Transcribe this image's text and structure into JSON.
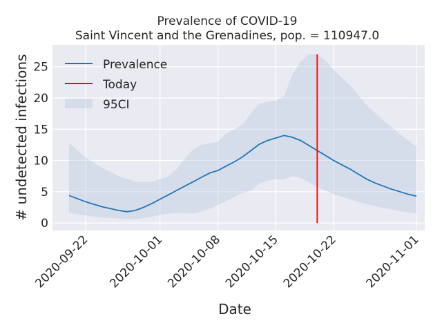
{
  "chart_data": {
    "type": "line",
    "title": "Prevalence of COVID-19",
    "subtitle": "Saint Vincent and the Grenadines, pop. = 110947.0",
    "xlabel": "Date",
    "ylabel": "# undetected infections",
    "xlim": [
      "2020-09-18",
      "2020-11-02"
    ],
    "ylim": [
      -1.2,
      28.5
    ],
    "x_ticks": [
      "2020-09-22",
      "2020-10-01",
      "2020-10-08",
      "2020-10-15",
      "2020-10-22",
      "2020-11-01"
    ],
    "y_ticks": [
      0,
      5,
      10,
      15,
      20,
      25
    ],
    "grid": true,
    "legend_position": "top-left",
    "series": [
      {
        "name": "Prevalence",
        "color": "#1f77b4",
        "x": [
          "2020-09-20",
          "2020-09-21",
          "2020-09-22",
          "2020-09-23",
          "2020-09-24",
          "2020-09-25",
          "2020-09-26",
          "2020-09-27",
          "2020-09-28",
          "2020-09-29",
          "2020-09-30",
          "2020-10-01",
          "2020-10-02",
          "2020-10-03",
          "2020-10-04",
          "2020-10-05",
          "2020-10-06",
          "2020-10-07",
          "2020-10-08",
          "2020-10-09",
          "2020-10-10",
          "2020-10-11",
          "2020-10-12",
          "2020-10-13",
          "2020-10-14",
          "2020-10-15",
          "2020-10-16",
          "2020-10-17",
          "2020-10-18",
          "2020-10-19",
          "2020-10-20",
          "2020-10-21",
          "2020-10-22",
          "2020-10-23",
          "2020-10-24",
          "2020-10-25",
          "2020-10-26",
          "2020-10-27",
          "2020-10-28",
          "2020-10-29",
          "2020-10-30",
          "2020-10-31",
          "2020-11-01"
        ],
        "values": [
          4.4,
          3.9,
          3.4,
          3.0,
          2.6,
          2.3,
          2.0,
          1.8,
          2.0,
          2.5,
          3.1,
          3.8,
          4.5,
          5.2,
          5.9,
          6.6,
          7.3,
          8.0,
          8.4,
          9.1,
          9.8,
          10.6,
          11.6,
          12.6,
          13.2,
          13.6,
          14.0,
          13.7,
          13.2,
          12.4,
          11.6,
          10.8,
          10.0,
          9.3,
          8.6,
          7.8,
          7.0,
          6.4,
          5.9,
          5.4,
          5.0,
          4.6,
          4.3
        ]
      },
      {
        "name": "Today",
        "color": "#ff0000",
        "x": [
          "2020-10-20",
          "2020-10-20"
        ],
        "values": [
          0,
          27
        ]
      }
    ],
    "band": {
      "name": "95CI",
      "color": "#b0c4de",
      "x": [
        "2020-09-20",
        "2020-09-22",
        "2020-09-24",
        "2020-09-26",
        "2020-09-28",
        "2020-09-29",
        "2020-09-30",
        "2020-10-01",
        "2020-10-02",
        "2020-10-03",
        "2020-10-04",
        "2020-10-05",
        "2020-10-06",
        "2020-10-07",
        "2020-10-08",
        "2020-10-09",
        "2020-10-10",
        "2020-10-11",
        "2020-10-12",
        "2020-10-13",
        "2020-10-14",
        "2020-10-15",
        "2020-10-16",
        "2020-10-17",
        "2020-10-18",
        "2020-10-19",
        "2020-10-20",
        "2020-10-21",
        "2020-10-22",
        "2020-10-24",
        "2020-10-26",
        "2020-10-28",
        "2020-10-30",
        "2020-11-01"
      ],
      "lower": [
        1.6,
        1.2,
        0.9,
        0.7,
        0.6,
        0.8,
        1.0,
        1.3,
        1.5,
        1.6,
        1.6,
        1.5,
        1.8,
        2.3,
        2.9,
        3.5,
        4.2,
        4.8,
        5.2,
        6.3,
        6.8,
        7.0,
        7.0,
        7.5,
        7.2,
        6.5,
        5.8,
        5.2,
        4.6,
        3.8,
        3.0,
        2.4,
        1.9,
        1.5
      ],
      "upper": [
        12.8,
        10.5,
        8.8,
        7.5,
        6.6,
        6.5,
        6.6,
        7.0,
        7.5,
        8.6,
        10.3,
        11.8,
        12.5,
        12.7,
        13.0,
        14.3,
        15.0,
        15.8,
        17.6,
        19.0,
        19.4,
        19.5,
        20.3,
        23.8,
        25.8,
        27.0,
        27.0,
        26.0,
        24.5,
        22.0,
        18.8,
        16.4,
        14.2,
        12.2
      ]
    }
  }
}
